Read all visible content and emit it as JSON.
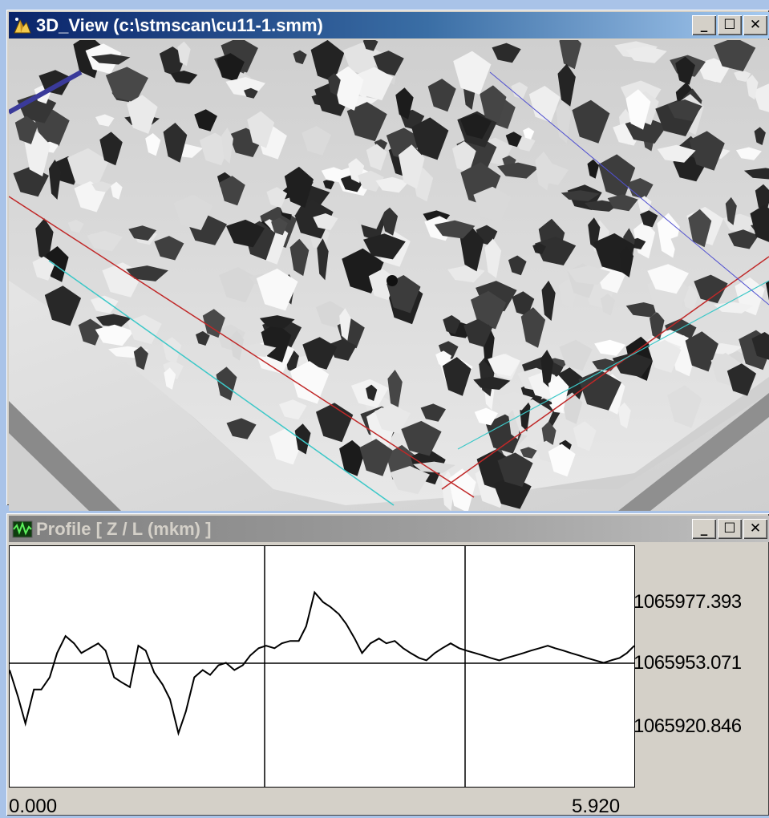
{
  "view3d": {
    "title": "3D_View (c:\\stmscan\\cu11-1.smm)",
    "minimize_glyph": "_",
    "maximize_glyph": "☐",
    "close_glyph": "✕",
    "icon": "3d-app-icon"
  },
  "profile": {
    "title": "Profile [ Z / L (mkm) ]",
    "minimize_glyph": "_",
    "maximize_glyph": "☐",
    "close_glyph": "✕",
    "icon": "waveform-icon"
  },
  "colors": {
    "active_title": "#0a246a",
    "inactive_title": "#808080",
    "desktop": "#a9c3e8"
  },
  "chart_data": {
    "type": "line",
    "ytick_labels": [
      "1065977.393",
      "1065953.071",
      "1065920.846"
    ],
    "xtick_labels": [
      "0.000",
      "5.920"
    ],
    "xlim": [
      0,
      5.92
    ],
    "ylim": [
      1065905,
      1066004
    ],
    "grid": true,
    "x": [
      0.0,
      0.08,
      0.15,
      0.23,
      0.3,
      0.38,
      0.45,
      0.53,
      0.61,
      0.68,
      0.76,
      0.84,
      0.91,
      0.99,
      1.06,
      1.14,
      1.22,
      1.29,
      1.37,
      1.45,
      1.52,
      1.6,
      1.67,
      1.75,
      1.83,
      1.9,
      1.98,
      2.05,
      2.13,
      2.21,
      2.28,
      2.36,
      2.43,
      2.51,
      2.58,
      2.66,
      2.74,
      2.81,
      2.89,
      2.97,
      3.04,
      3.12,
      3.19,
      3.27,
      3.34,
      3.42,
      3.5,
      3.57,
      3.65,
      3.73,
      3.8,
      3.88,
      3.95,
      4.03,
      4.1,
      4.18,
      4.26,
      4.33,
      4.41,
      4.49,
      4.56,
      4.64,
      4.71,
      4.79,
      4.87,
      4.94,
      5.02,
      5.1,
      5.17,
      5.25,
      5.32,
      5.4,
      5.47,
      5.55,
      5.63,
      5.7,
      5.78,
      5.85,
      5.92
    ],
    "y": [
      1065953,
      1065942,
      1065931,
      1065945,
      1065945,
      1065950,
      1065960,
      1065967,
      1065964,
      1065960,
      1065962,
      1065964,
      1065961,
      1065950,
      1065948,
      1065946,
      1065963,
      1065961,
      1065952,
      1065947,
      1065941,
      1065927,
      1065936,
      1065950,
      1065953,
      1065951,
      1065955,
      1065956,
      1065953,
      1065955,
      1065959,
      1065962,
      1065963,
      1065962,
      1065964,
      1065965,
      1065965,
      1065971,
      1065985,
      1065981,
      1065979,
      1065976,
      1065972,
      1065966,
      1065960,
      1065964,
      1065966,
      1065964,
      1065965,
      1065962,
      1065960,
      1065958,
      1065957,
      1065960,
      1065962,
      1065964,
      1065962,
      1065961,
      1065960,
      1065959,
      1065958,
      1065957,
      1065958,
      1065959,
      1065960,
      1065961,
      1065962,
      1065963,
      1065962,
      1065961,
      1065960,
      1065959,
      1065958,
      1065957,
      1065956,
      1065957,
      1065958,
      1065960,
      1065963
    ]
  }
}
